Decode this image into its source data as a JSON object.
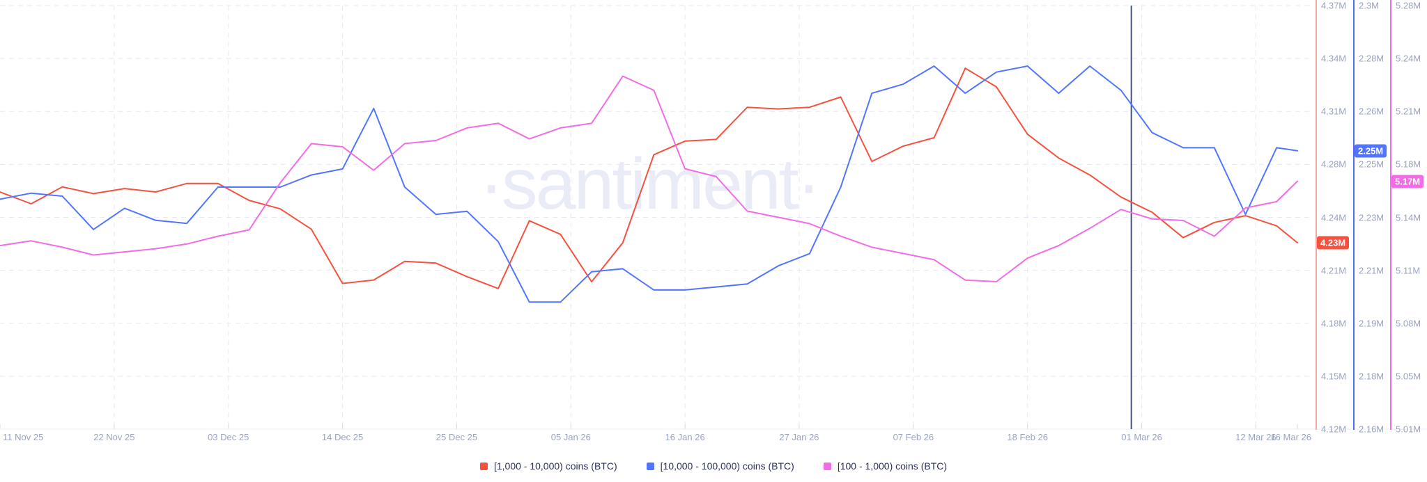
{
  "watermark": "·santiment·",
  "colors": {
    "background": "#ffffff",
    "grid": "#e6e9f3",
    "axis_bottom_line": "#eceef5",
    "tick_mark": "#d5dae6",
    "axis_text": "#9aa3bf",
    "legend_text": "#2b3156",
    "red": "#f5513f",
    "blue": "#5275ff",
    "pink": "#f26ce5",
    "red_axis_line": "#f8a79e",
    "blue_axis_line": "#4e6cf3",
    "pink_axis_line": "#f36fe8",
    "event_line": "#44517e",
    "watermark_color": "#e9ebf6"
  },
  "chart_data": {
    "type": "line",
    "grid": true,
    "legend_position": "bottom",
    "x_total_days": 125,
    "days": [
      0,
      3,
      6,
      9,
      12,
      15,
      18,
      21,
      24,
      27,
      30,
      33,
      36,
      39,
      42,
      45,
      48,
      51,
      54,
      57,
      60,
      63,
      66,
      69,
      72,
      75,
      78,
      81,
      84,
      87,
      90,
      93,
      96,
      99,
      102,
      105,
      108,
      111,
      114,
      117,
      120,
      123,
      125
    ],
    "dates": [
      "2025-11-11",
      "2025-11-14",
      "2025-11-17",
      "2025-11-20",
      "2025-11-23",
      "2025-11-26",
      "2025-11-29",
      "2025-12-02",
      "2025-12-05",
      "2025-12-08",
      "2025-12-11",
      "2025-12-14",
      "2025-12-17",
      "2025-12-20",
      "2025-12-23",
      "2025-12-26",
      "2025-12-29",
      "2026-01-01",
      "2026-01-04",
      "2026-01-07",
      "2026-01-10",
      "2026-01-13",
      "2026-01-16",
      "2026-01-19",
      "2026-01-22",
      "2026-01-25",
      "2026-01-28",
      "2026-01-31",
      "2026-02-03",
      "2026-02-06",
      "2026-02-09",
      "2026-02-12",
      "2026-02-15",
      "2026-02-18",
      "2026-02-21",
      "2026-02-24",
      "2026-02-27",
      "2026-03-02",
      "2026-03-05",
      "2026-03-08",
      "2026-03-11",
      "2026-03-14",
      "2026-03-16"
    ],
    "x_ticks": [
      {
        "label": "11 Nov 25",
        "day": 0
      },
      {
        "label": "22 Nov 25",
        "day": 11
      },
      {
        "label": "03 Dec 25",
        "day": 22
      },
      {
        "label": "14 Dec 25",
        "day": 33
      },
      {
        "label": "25 Dec 25",
        "day": 44
      },
      {
        "label": "05 Jan 26",
        "day": 55
      },
      {
        "label": "16 Jan 26",
        "day": 66
      },
      {
        "label": "27 Jan 26",
        "day": 77
      },
      {
        "label": "07 Feb 26",
        "day": 88
      },
      {
        "label": "18 Feb 26",
        "day": 99
      },
      {
        "label": "01 Mar 26",
        "day": 110
      },
      {
        "label": "12 Mar 26",
        "day": 121
      },
      {
        "label": "16 Mar 26",
        "day": 125
      }
    ],
    "event_line": {
      "date": "2026-02-28",
      "day": 109
    },
    "series": [
      {
        "name": "[1,000 - 10,000) coins (BTC)",
        "color_key": "red",
        "unit": "M",
        "ylim": [
          4.12,
          4.37
        ],
        "axis_ticks": [
          "4.37M",
          "4.34M",
          "4.31M",
          "4.28M",
          "4.24M",
          "4.21M",
          "4.18M",
          "4.15M",
          "4.12M"
        ],
        "last_value_label": "4.23M",
        "values": [
          4.26,
          4.253,
          4.263,
          4.259,
          4.262,
          4.26,
          4.265,
          4.265,
          4.255,
          4.25,
          4.238,
          4.206,
          4.208,
          4.219,
          4.218,
          4.21,
          4.203,
          4.243,
          4.235,
          4.207,
          4.23,
          4.282,
          4.29,
          4.291,
          4.31,
          4.309,
          4.31,
          4.316,
          4.278,
          4.287,
          4.292,
          4.333,
          4.322,
          4.294,
          4.28,
          4.27,
          4.257,
          4.248,
          4.233,
          4.242,
          4.246,
          4.24,
          4.23
        ]
      },
      {
        "name": "[10,000 - 100,000) coins (BTC)",
        "color_key": "blue",
        "unit": "M",
        "ylim": [
          2.16,
          2.3
        ],
        "axis_ticks": [
          "2.3M",
          "2.28M",
          "2.26M",
          "2.25M",
          "2.23M",
          "2.21M",
          "2.19M",
          "2.18M",
          "2.16M"
        ],
        "last_value_label": "2.25M",
        "values": [
          2.236,
          2.238,
          2.237,
          2.226,
          2.233,
          2.229,
          2.228,
          2.24,
          2.24,
          2.24,
          2.244,
          2.246,
          2.266,
          2.24,
          2.231,
          2.232,
          2.222,
          2.202,
          2.202,
          2.212,
          2.213,
          2.206,
          2.206,
          2.207,
          2.208,
          2.214,
          2.218,
          2.24,
          2.271,
          2.274,
          2.28,
          2.271,
          2.278,
          2.28,
          2.271,
          2.28,
          2.272,
          2.258,
          2.253,
          2.253,
          2.231,
          2.253,
          2.252
        ]
      },
      {
        "name": "[100 - 1,000) coins (BTC)",
        "color_key": "pink",
        "unit": "M",
        "ylim": [
          5.01,
          5.28
        ],
        "axis_ticks": [
          "5.28M",
          "5.24M",
          "5.21M",
          "5.18M",
          "5.14M",
          "5.11M",
          "5.08M",
          "5.05M",
          "5.01M"
        ],
        "last_value_label": "5.17M",
        "values": [
          5.127,
          5.13,
          5.126,
          5.121,
          5.123,
          5.125,
          5.128,
          5.133,
          5.137,
          5.167,
          5.192,
          5.19,
          5.175,
          5.192,
          5.194,
          5.202,
          5.205,
          5.195,
          5.202,
          5.205,
          5.235,
          5.226,
          5.176,
          5.171,
          5.149,
          5.145,
          5.141,
          5.133,
          5.126,
          5.122,
          5.118,
          5.105,
          5.104,
          5.119,
          5.127,
          5.138,
          5.15,
          5.144,
          5.143,
          5.133,
          5.151,
          5.155,
          5.168
        ]
      }
    ]
  },
  "legend": {
    "items": [
      "[1,000 - 10,000) coins (BTC)",
      "[10,000 - 100,000) coins (BTC)",
      "[100 - 1,000) coins (BTC)"
    ]
  }
}
